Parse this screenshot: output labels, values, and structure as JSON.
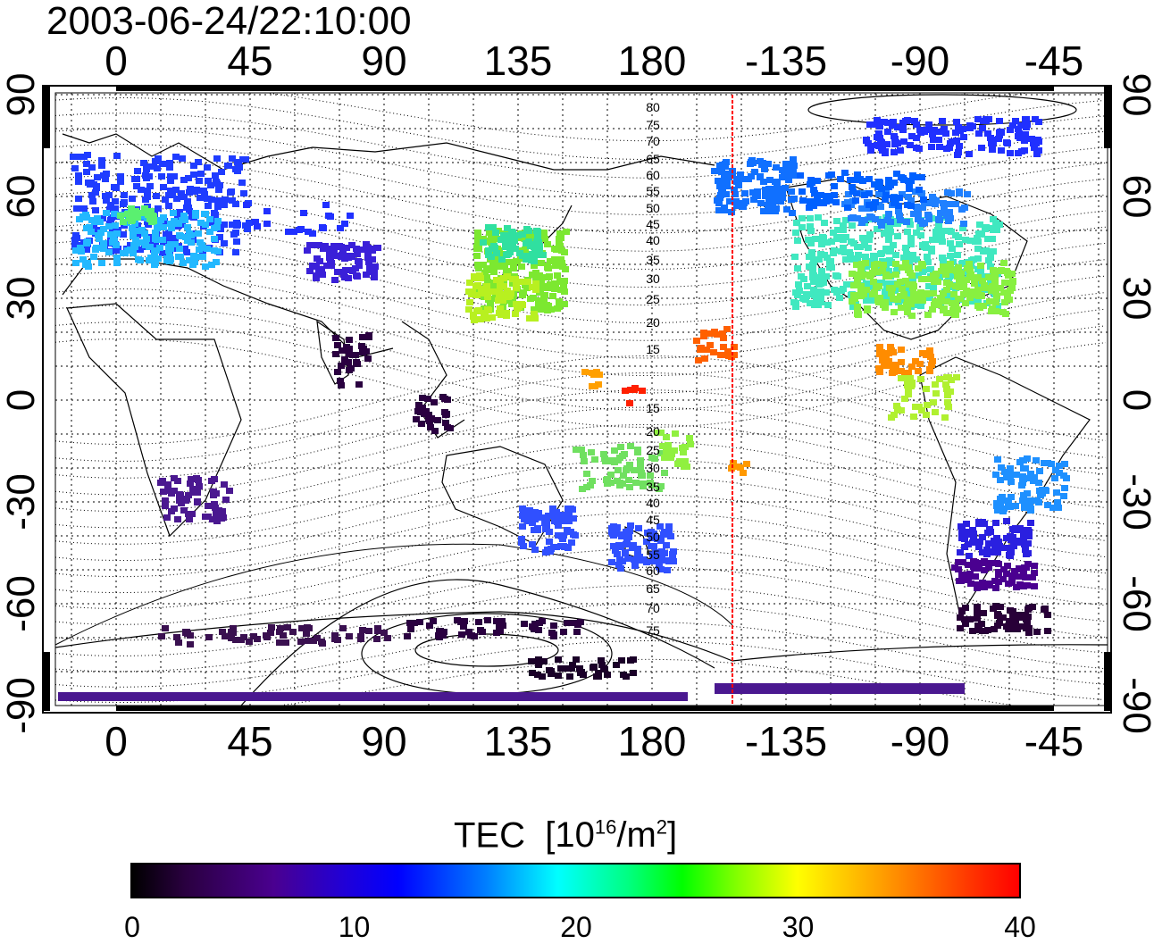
{
  "title": "2003-06-24/22:10:00",
  "map": {
    "lon_ticks": [
      "0",
      "45",
      "90",
      "135",
      "180",
      "-135",
      "-90",
      "-45"
    ],
    "lat_ticks": [
      "90",
      "60",
      "30",
      "0",
      "-30",
      "-60",
      "-90"
    ],
    "contour_labels": [
      "80",
      "75",
      "70",
      "65",
      "60",
      "55",
      "50",
      "45",
      "40",
      "35",
      "30",
      "25",
      "20",
      "15",
      "15",
      "20",
      "25",
      "30",
      "35",
      "40",
      "45",
      "50",
      "55",
      "60",
      "65",
      "70",
      "75"
    ],
    "terminator_longitude": -153,
    "terminator_color": "#ff0000"
  },
  "colorbar": {
    "label": "TEC",
    "unit_text": "[10",
    "unit_exp1": "16",
    "unit_mid": "/m",
    "unit_exp2": "2",
    "unit_close": "]",
    "ticks": [
      "0",
      "10",
      "20",
      "30",
      "40"
    ],
    "range": [
      0,
      40
    ]
  },
  "colors": {
    "low": "#000000",
    "mid_blue": "#0000ff",
    "cyan": "#00ffff",
    "green": "#00ff00",
    "yellow": "#ffff00",
    "high": "#ff0000"
  }
}
